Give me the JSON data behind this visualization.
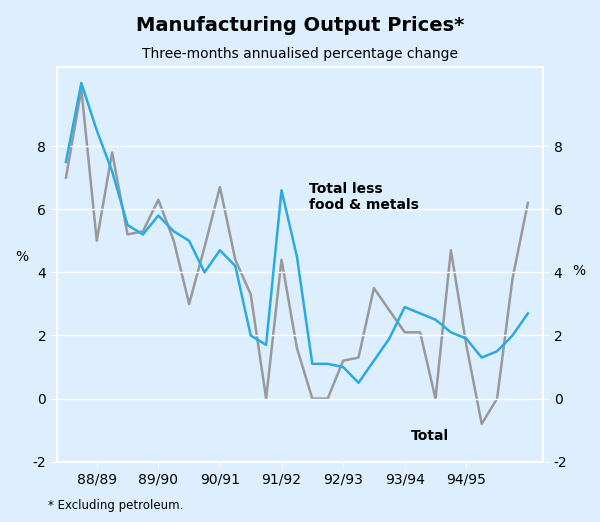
{
  "title": "Manufacturing Output Prices*",
  "subtitle": "Three-months annualised percentage change",
  "footnote": "* Excluding petroleum.",
  "ylabel_left": "%",
  "ylabel_right": "%",
  "ylim": [
    -2,
    10.5
  ],
  "yticks": [
    -2,
    0,
    2,
    4,
    6,
    8
  ],
  "background_color": "#ddeeff",
  "plot_background": "#ddeeff",
  "label_total_less": "Total less\nfood & metals",
  "label_total": "Total",
  "xtick_labels": [
    "88/89",
    "89/90",
    "90/91",
    "91/92",
    "92/93",
    "93/94",
    "94/95"
  ],
  "color_blue": "#29abe2",
  "color_gray": "#999999",
  "total_less_x": [
    1987.75,
    1988.0,
    1988.25,
    1988.5,
    1988.75,
    1989.0,
    1989.25,
    1989.5,
    1989.75,
    1990.0,
    1990.25,
    1990.5,
    1990.75,
    1991.0,
    1991.25,
    1991.5,
    1991.75,
    1992.0,
    1992.25,
    1992.5,
    1992.75,
    1993.0,
    1993.25,
    1993.5,
    1993.75,
    1994.0,
    1994.25,
    1994.5,
    1994.75,
    1995.0,
    1995.25
  ],
  "total_less_y": [
    7.5,
    10.0,
    8.5,
    7.2,
    5.5,
    5.2,
    5.8,
    5.3,
    5.0,
    4.0,
    4.7,
    4.2,
    2.0,
    1.7,
    6.6,
    4.5,
    1.1,
    1.1,
    1.0,
    0.5,
    1.2,
    1.9,
    2.9,
    2.7,
    2.5,
    2.1,
    1.9,
    1.3,
    1.5,
    2.0,
    2.7
  ],
  "total_x": [
    1987.75,
    1988.0,
    1988.25,
    1988.5,
    1988.75,
    1989.0,
    1989.25,
    1989.5,
    1989.75,
    1990.0,
    1990.25,
    1990.5,
    1990.75,
    1991.0,
    1991.25,
    1991.5,
    1991.75,
    1992.0,
    1992.25,
    1992.5,
    1992.75,
    1993.0,
    1993.25,
    1993.5,
    1993.75,
    1994.0,
    1994.25,
    1994.5,
    1994.75,
    1995.0,
    1995.25
  ],
  "total_y": [
    7.0,
    9.8,
    5.0,
    7.8,
    5.2,
    5.3,
    6.3,
    5.0,
    3.0,
    4.8,
    6.7,
    4.4,
    3.3,
    0.0,
    4.4,
    1.6,
    0.0,
    0.0,
    1.2,
    1.3,
    3.5,
    2.8,
    2.1,
    2.1,
    0.0,
    4.7,
    1.7,
    -0.8,
    0.0,
    3.8,
    6.2
  ]
}
